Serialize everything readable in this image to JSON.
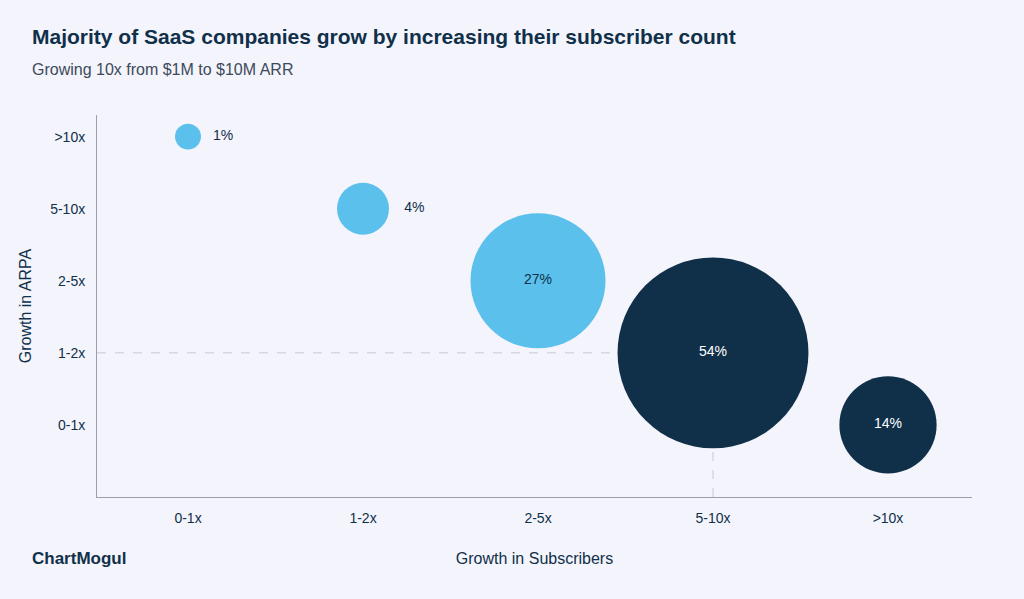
{
  "chart_data": {
    "type": "bubble",
    "title": "Majority of SaaS companies grow by increasing their subscriber count",
    "subtitle": "Growing 10x from $1M to $10M ARR",
    "x_label": "Growth in Subscribers",
    "y_label": "Growth in ARPA",
    "xticks": [
      "0-1x",
      "1-2x",
      "2-5x",
      "5-10x",
      ">10x"
    ],
    "yticks": [
      "0-1x",
      "1-2x",
      "2-5x",
      "5-10x",
      ">10x"
    ],
    "x": [
      "0-1x",
      "1-2x",
      "2-5x",
      "5-10x",
      ">10x"
    ],
    "y": [
      ">10x",
      "5-10x",
      "2-5x",
      "1-2x",
      "0-1x"
    ],
    "values": [
      1,
      4,
      27,
      54,
      14
    ],
    "value_labels": [
      "1%",
      "4%",
      "27%",
      "54%",
      "14%"
    ],
    "colors": [
      "#5bc0eb",
      "#5bc0eb",
      "#5bc0eb",
      "#10304a",
      "#10304a"
    ],
    "data_labels": true,
    "grid": false,
    "marker": "circle",
    "annotations": [
      "ChartMogul"
    ]
  }
}
